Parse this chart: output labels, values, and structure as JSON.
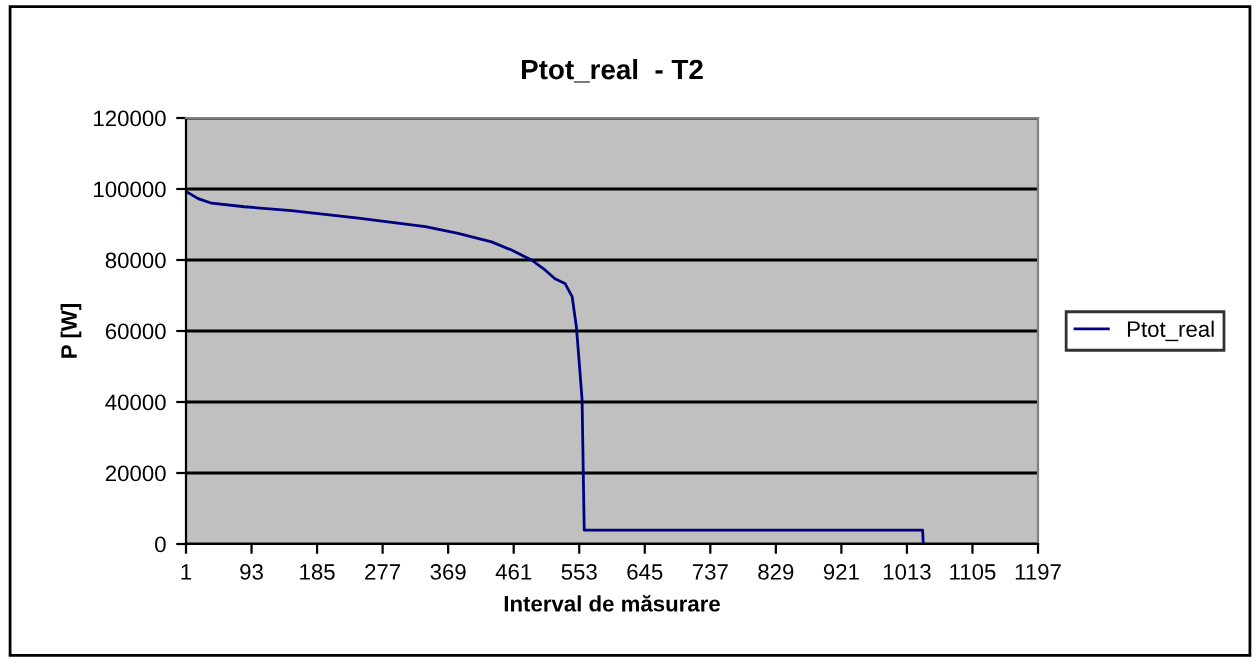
{
  "chart_data": {
    "type": "line",
    "title": "Ptot_real  - T2",
    "xlabel": "Interval de măsurare",
    "ylabel": "P [W]",
    "series": [
      {
        "name": "Ptot_real",
        "color": "#000080",
        "x": [
          1,
          18,
          37,
          83,
          149,
          243,
          337,
          383,
          430,
          458,
          486,
          505,
          519,
          533,
          543,
          549,
          552,
          557,
          560,
          1035,
          1036
        ],
        "values": [
          99300,
          97300,
          96000,
          95000,
          93900,
          91800,
          89400,
          87500,
          85100,
          82800,
          80000,
          77200,
          74700,
          73400,
          69700,
          61200,
          53700,
          40600,
          3900,
          3900,
          0
        ]
      }
    ],
    "xlim": [
      1,
      1197
    ],
    "xticks": [
      1,
      93,
      185,
      277,
      369,
      461,
      553,
      645,
      737,
      829,
      921,
      1013,
      1105,
      1197
    ],
    "ylim": [
      0,
      120000
    ],
    "yticks": [
      0,
      20000,
      40000,
      60000,
      80000,
      100000,
      120000
    ],
    "grid": "y",
    "legend": "right",
    "marker": "none",
    "line_style": "solid"
  }
}
